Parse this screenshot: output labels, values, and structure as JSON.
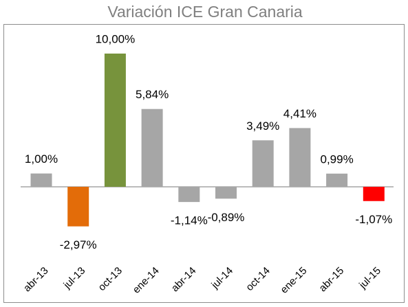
{
  "chart_data": {
    "type": "bar",
    "title": "Variación ICE Gran Canaria",
    "categories": [
      "abr-13",
      "jul-13",
      "oct-13",
      "ene-14",
      "abr-14",
      "jul-14",
      "oct-14",
      "ene-15",
      "abr-15",
      "jul-15"
    ],
    "values": [
      1.0,
      -2.97,
      10.0,
      5.84,
      -1.14,
      -0.89,
      3.49,
      4.41,
      0.99,
      -1.07
    ],
    "value_labels": [
      "1,00%",
      "-2,97%",
      "10,00%",
      "5,84%",
      "-1,14%",
      "-0,89%",
      "3,49%",
      "4,41%",
      "0,99%",
      "-1,07%"
    ],
    "colors": [
      "#a6a6a6",
      "#e36c09",
      "#77933c",
      "#a6a6a6",
      "#a6a6a6",
      "#a6a6a6",
      "#a6a6a6",
      "#a6a6a6",
      "#a6a6a6",
      "#ff0000"
    ]
  }
}
